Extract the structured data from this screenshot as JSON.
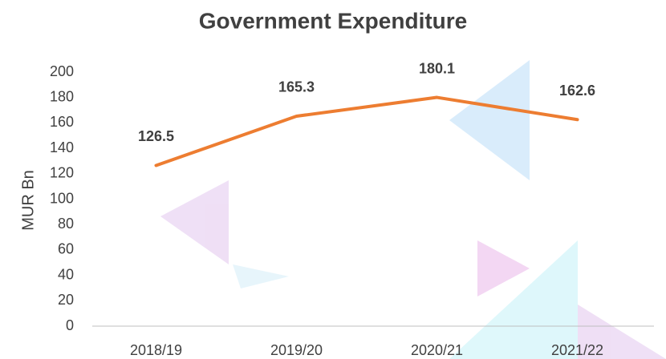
{
  "chart_data": {
    "type": "line",
    "title": "Government Expenditure",
    "y_label": "MUR Bn",
    "categories": [
      "2018/19",
      "2019/20",
      "2020/21",
      "2021/22"
    ],
    "series": [
      {
        "name": "Government Expenditure",
        "color": "#ed7d31",
        "values": [
          126.5,
          165.3,
          180.1,
          162.6
        ]
      }
    ],
    "ylim": [
      0,
      200
    ],
    "yticks": [
      0,
      20,
      40,
      60,
      80,
      100,
      120,
      140,
      160,
      180,
      200
    ],
    "grid": false
  }
}
